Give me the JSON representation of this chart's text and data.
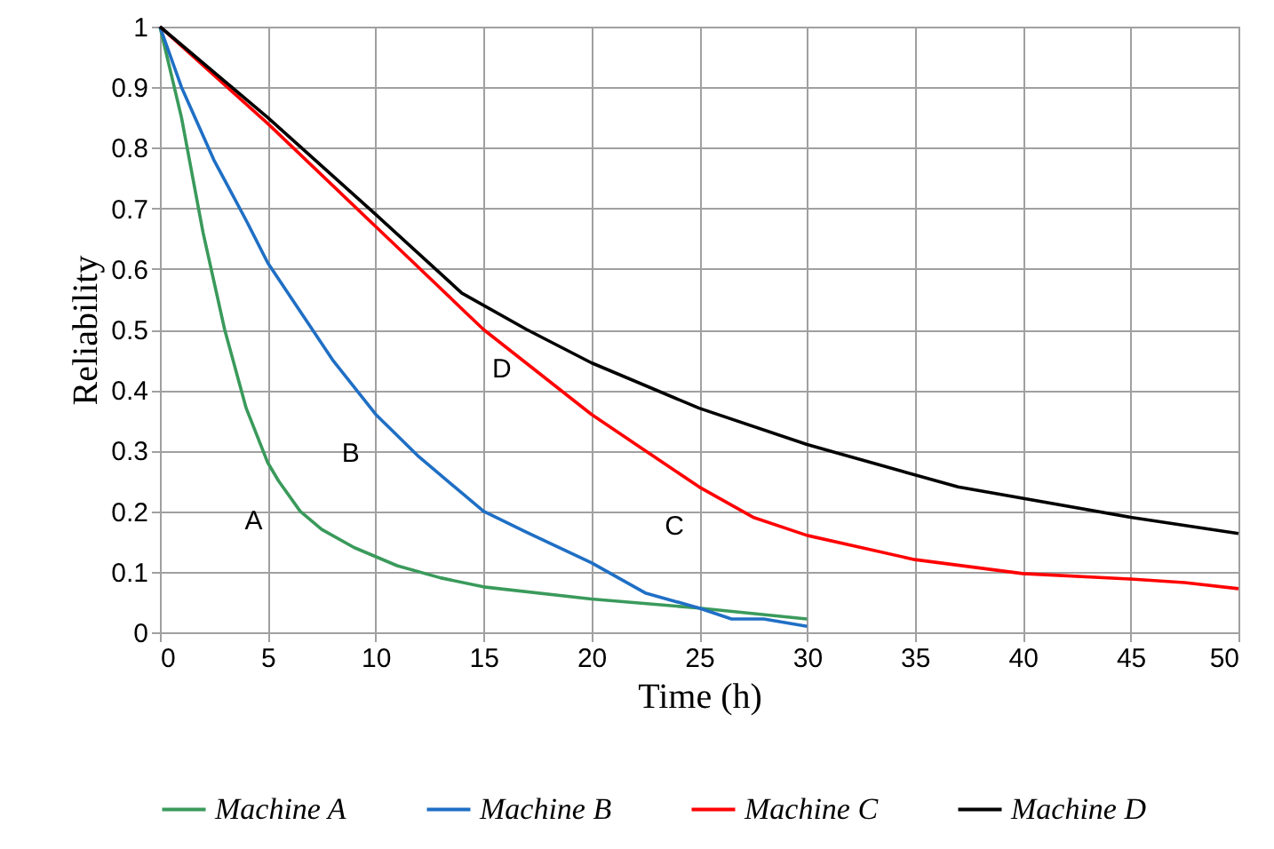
{
  "chart_data": {
    "type": "line",
    "xlabel": "Time (h)",
    "ylabel": "Reliability",
    "xlim": [
      0,
      50
    ],
    "xticks": [
      0,
      5,
      10,
      15,
      20,
      25,
      30,
      35,
      40,
      45,
      50
    ],
    "ylim": [
      0,
      1
    ],
    "yticks": [
      0,
      0.1,
      0.2,
      0.3,
      0.4,
      0.5,
      0.6,
      0.7,
      0.8,
      0.9,
      1
    ],
    "grid": true,
    "legend": "bottom",
    "marker": "none",
    "line_style": "solid",
    "series": [
      {
        "name": "Machine A",
        "color": "#3a9a5b",
        "x": [
          0,
          1,
          2,
          3,
          4,
          5,
          5.5,
          6.5,
          7.5,
          9,
          11,
          13,
          15,
          20,
          25,
          30
        ],
        "values": [
          1,
          0.85,
          0.66,
          0.5,
          0.37,
          0.28,
          0.25,
          0.2,
          0.17,
          0.14,
          0.11,
          0.09,
          0.075,
          0.055,
          0.04,
          0.022
        ]
      },
      {
        "name": "Machine B",
        "color": "#1f6fc5",
        "x": [
          0,
          1,
          2.5,
          4,
          5,
          6.5,
          8,
          10,
          12,
          14,
          15,
          17,
          20,
          22.5,
          25,
          26.5,
          28,
          30
        ],
        "values": [
          1,
          0.9,
          0.78,
          0.68,
          0.61,
          0.53,
          0.45,
          0.36,
          0.29,
          0.23,
          0.2,
          0.165,
          0.115,
          0.065,
          0.04,
          0.022,
          0.022,
          0.01
        ]
      },
      {
        "name": "Machine C",
        "color": "#ff0000",
        "x": [
          0,
          5,
          10,
          15,
          20,
          22.5,
          25,
          27.5,
          30,
          32.5,
          35,
          40,
          45,
          47.5,
          50
        ],
        "values": [
          1,
          0.84,
          0.67,
          0.5,
          0.36,
          0.3,
          0.24,
          0.19,
          0.16,
          0.14,
          0.12,
          0.097,
          0.088,
          0.082,
          0.072
        ]
      },
      {
        "name": "Machine D",
        "color": "#000000",
        "x": [
          0,
          5,
          10,
          14,
          17,
          20,
          25,
          30,
          33,
          37,
          45,
          50
        ],
        "values": [
          1,
          0.85,
          0.69,
          0.56,
          0.5,
          0.445,
          0.37,
          0.31,
          0.28,
          0.24,
          0.19,
          0.163
        ]
      }
    ],
    "annotations": [
      "A",
      "B",
      "C",
      "D"
    ]
  }
}
